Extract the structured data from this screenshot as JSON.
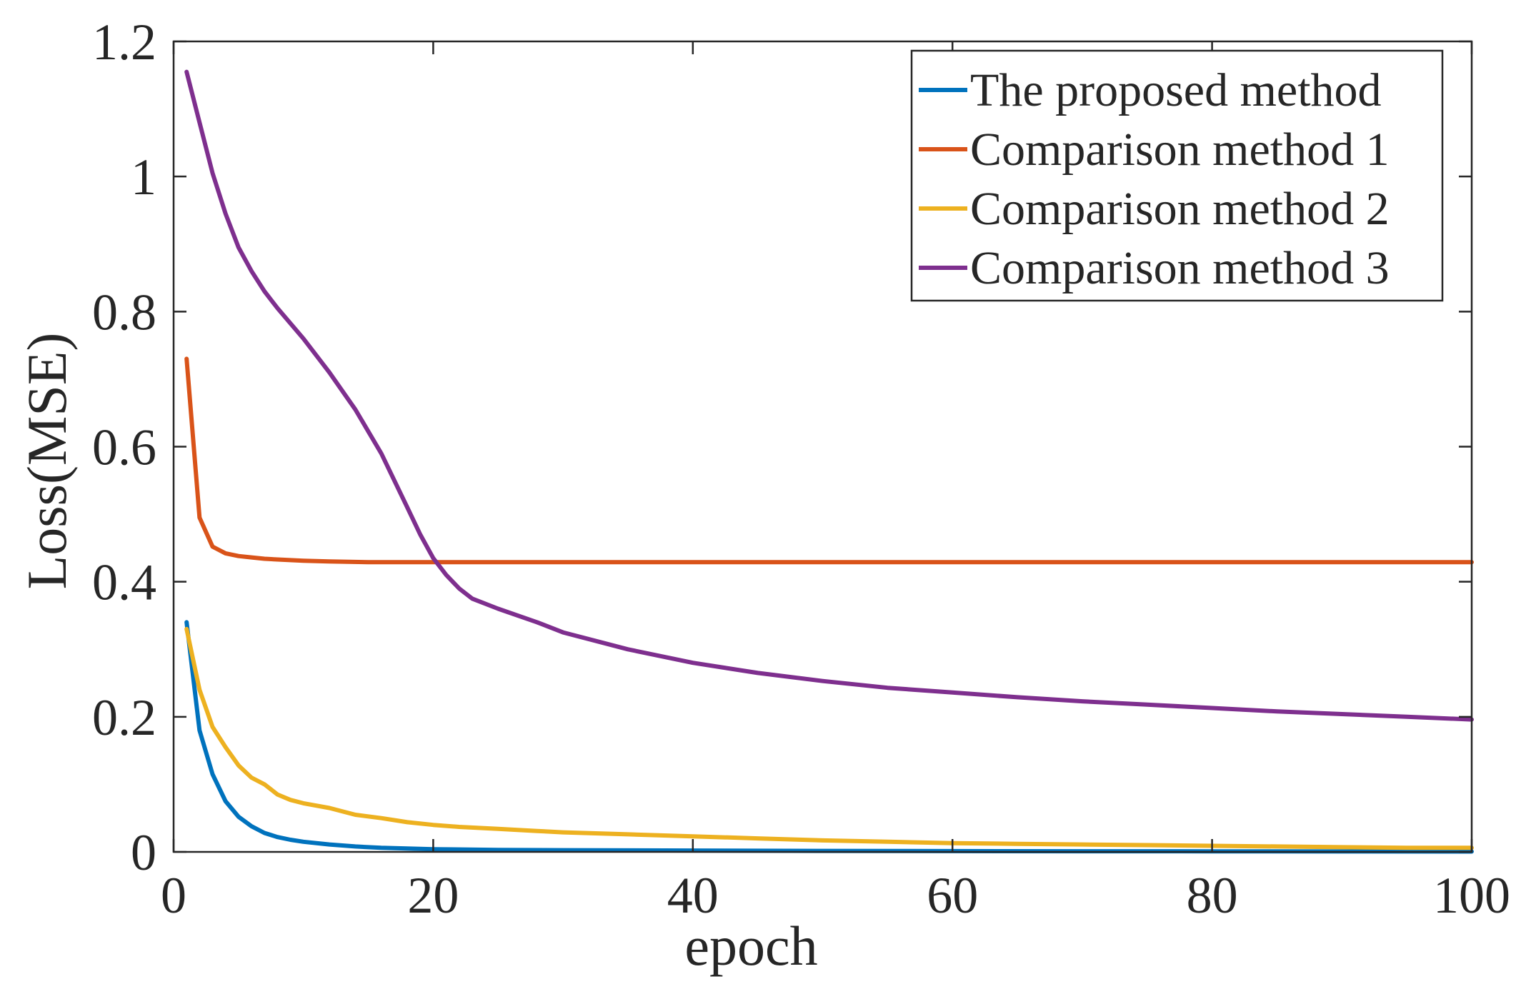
{
  "chart_data": {
    "type": "line",
    "title": "",
    "xlabel": "epoch",
    "ylabel": "Loss(MSE)",
    "xlim": [
      0,
      100
    ],
    "ylim": [
      0,
      1.2
    ],
    "xticks": [
      0,
      20,
      40,
      60,
      80,
      100
    ],
    "xtick_labels": [
      "0",
      "20",
      "40",
      "60",
      "80",
      "100"
    ],
    "yticks": [
      0,
      0.2,
      0.4,
      0.6,
      0.8,
      1.0,
      1.2
    ],
    "ytick_labels": [
      "0",
      "0.2",
      "0.4",
      "0.6",
      "0.8",
      "1",
      "1.2"
    ],
    "grid": false,
    "legend_position": "top-right",
    "series": [
      {
        "name": "The proposed method",
        "color": "#0072BD",
        "x": [
          1,
          2,
          3,
          4,
          5,
          6,
          7,
          8,
          9,
          10,
          12,
          14,
          16,
          18,
          20,
          25,
          30,
          40,
          50,
          60,
          70,
          80,
          90,
          100
        ],
        "y": [
          0.34,
          0.18,
          0.115,
          0.075,
          0.052,
          0.038,
          0.028,
          0.022,
          0.018,
          0.015,
          0.011,
          0.008,
          0.006,
          0.005,
          0.004,
          0.003,
          0.0025,
          0.002,
          0.0015,
          0.0012,
          0.001,
          0.0008,
          0.0006,
          0.0005
        ]
      },
      {
        "name": "Comparison method 1",
        "color": "#D95319",
        "x": [
          1,
          2,
          3,
          4,
          5,
          6,
          7,
          8,
          10,
          12,
          15,
          20,
          30,
          40,
          50,
          60,
          70,
          80,
          90,
          100
        ],
        "y": [
          0.73,
          0.495,
          0.452,
          0.442,
          0.438,
          0.436,
          0.434,
          0.433,
          0.431,
          0.43,
          0.429,
          0.429,
          0.429,
          0.429,
          0.429,
          0.429,
          0.429,
          0.429,
          0.429,
          0.429
        ]
      },
      {
        "name": "Comparison method 2",
        "color": "#EDB120",
        "x": [
          1,
          2,
          3,
          4,
          5,
          6,
          7,
          8,
          9,
          10,
          12,
          14,
          16,
          18,
          20,
          22,
          25,
          28,
          30,
          35,
          40,
          45,
          50,
          55,
          60,
          65,
          70,
          75,
          80,
          85,
          90,
          95,
          100
        ],
        "y": [
          0.33,
          0.24,
          0.185,
          0.155,
          0.128,
          0.11,
          0.1,
          0.085,
          0.077,
          0.072,
          0.065,
          0.055,
          0.05,
          0.044,
          0.04,
          0.037,
          0.034,
          0.031,
          0.029,
          0.026,
          0.023,
          0.02,
          0.017,
          0.015,
          0.013,
          0.012,
          0.011,
          0.01,
          0.009,
          0.008,
          0.007,
          0.006,
          0.006
        ]
      },
      {
        "name": "Comparison method 3",
        "color": "#7E2F8E",
        "x": [
          1,
          2,
          3,
          4,
          5,
          6,
          7,
          8,
          10,
          12,
          14,
          16,
          18,
          19,
          20,
          21,
          22,
          23,
          25,
          28,
          30,
          35,
          40,
          45,
          50,
          55,
          60,
          65,
          70,
          75,
          80,
          85,
          90,
          95,
          100
        ],
        "y": [
          1.155,
          1.08,
          1.005,
          0.945,
          0.895,
          0.86,
          0.83,
          0.805,
          0.76,
          0.71,
          0.655,
          0.59,
          0.51,
          0.47,
          0.435,
          0.41,
          0.39,
          0.375,
          0.36,
          0.34,
          0.325,
          0.3,
          0.28,
          0.265,
          0.253,
          0.243,
          0.236,
          0.229,
          0.223,
          0.218,
          0.213,
          0.208,
          0.204,
          0.2,
          0.196
        ]
      }
    ]
  }
}
